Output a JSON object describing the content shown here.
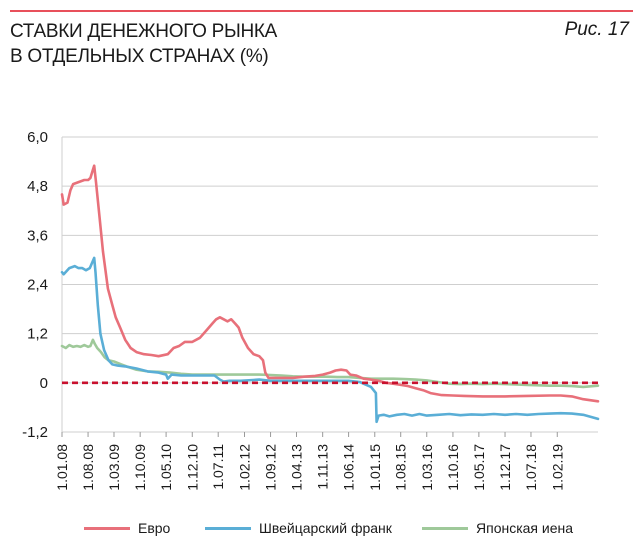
{
  "header": {
    "title_line1": "СТАВКИ ДЕНЕЖНОГО РЫНКА",
    "title_line2": "В ОТДЕЛЬНЫХ СТРАНАХ (%)",
    "figure_label": "Рис. 17",
    "accent_color": "#e8505b"
  },
  "chart_data": {
    "type": "line",
    "title": "СТАВКИ ДЕНЕЖНОГО РЫНКА В ОТДЕЛЬНЫХ СТРАНАХ (%)",
    "ylim": [
      -1.2,
      6.0
    ],
    "yticks": [
      6.0,
      4.8,
      3.6,
      2.4,
      1.2,
      0,
      -1.2
    ],
    "ytick_labels": [
      "6,0",
      "4,8",
      "3,6",
      "2,4",
      "1,2",
      "0",
      "-1,2"
    ],
    "xlim": [
      "2008-01-01",
      "2019-12-31"
    ],
    "xticks": [
      "2008-01-01",
      "2008-08-01",
      "2009-03-01",
      "2009-10-01",
      "2010-05-01",
      "2010-12-01",
      "2011-07-01",
      "2012-02-01",
      "2012-09-01",
      "2013-04-01",
      "2013-11-01",
      "2014-06-01",
      "2015-01-01",
      "2015-08-01",
      "2016-03-01",
      "2016-10-01",
      "2017-05-01",
      "2017-12-01",
      "2018-07-01",
      "2019-02-01"
    ],
    "xtick_labels": [
      "1.01.08",
      "1.08.08",
      "1.03.09",
      "1.10.09",
      "1.05.10",
      "1.12.10",
      "1.07.11",
      "1.02.12",
      "1.09.12",
      "1.04.13",
      "1.11.13",
      "1.06.14",
      "1.01.15",
      "1.08.15",
      "1.03.16",
      "1.10.16",
      "1.05.17",
      "1.12.17",
      "1.07.18",
      "1.02.19"
    ],
    "grid": "horizontal",
    "legend_position": "bottom",
    "zero_line_color": "#c8102e",
    "series": [
      {
        "name": "Евро",
        "color": "#e8707a",
        "points": [
          [
            "2008-01-01",
            4.6
          ],
          [
            "2008-01-15",
            4.35
          ],
          [
            "2008-02-15",
            4.4
          ],
          [
            "2008-03-10",
            4.7
          ],
          [
            "2008-04-01",
            4.85
          ],
          [
            "2008-05-15",
            4.9
          ],
          [
            "2008-07-01",
            4.95
          ],
          [
            "2008-08-01",
            4.95
          ],
          [
            "2008-08-20",
            5.0
          ],
          [
            "2008-09-10",
            5.2
          ],
          [
            "2008-09-20",
            5.3
          ],
          [
            "2008-10-05",
            4.9
          ],
          [
            "2008-11-01",
            4.1
          ],
          [
            "2008-12-01",
            3.2
          ],
          [
            "2009-01-10",
            2.3
          ],
          [
            "2009-02-15",
            1.9
          ],
          [
            "2009-03-15",
            1.6
          ],
          [
            "2009-04-20",
            1.35
          ],
          [
            "2009-06-01",
            1.05
          ],
          [
            "2009-07-15",
            0.85
          ],
          [
            "2009-09-01",
            0.75
          ],
          [
            "2009-11-01",
            0.7
          ],
          [
            "2010-01-01",
            0.68
          ],
          [
            "2010-03-01",
            0.65
          ],
          [
            "2010-05-15",
            0.7
          ],
          [
            "2010-07-01",
            0.85
          ],
          [
            "2010-08-15",
            0.9
          ],
          [
            "2010-10-01",
            1.0
          ],
          [
            "2010-12-01",
            1.0
          ],
          [
            "2011-02-01",
            1.1
          ],
          [
            "2011-04-01",
            1.3
          ],
          [
            "2011-05-15",
            1.45
          ],
          [
            "2011-06-15",
            1.55
          ],
          [
            "2011-07-15",
            1.6
          ],
          [
            "2011-08-15",
            1.55
          ],
          [
            "2011-09-15",
            1.5
          ],
          [
            "2011-10-15",
            1.55
          ],
          [
            "2011-11-15",
            1.45
          ],
          [
            "2011-12-15",
            1.35
          ],
          [
            "2012-01-15",
            1.1
          ],
          [
            "2012-03-01",
            0.85
          ],
          [
            "2012-04-15",
            0.7
          ],
          [
            "2012-06-01",
            0.65
          ],
          [
            "2012-07-01",
            0.55
          ],
          [
            "2012-07-20",
            0.25
          ],
          [
            "2012-08-15",
            0.12
          ],
          [
            "2012-10-01",
            0.12
          ],
          [
            "2012-12-01",
            0.12
          ],
          [
            "2013-03-01",
            0.12
          ],
          [
            "2013-06-01",
            0.15
          ],
          [
            "2013-09-01",
            0.17
          ],
          [
            "2013-11-01",
            0.2
          ],
          [
            "2014-01-01",
            0.25
          ],
          [
            "2014-02-15",
            0.3
          ],
          [
            "2014-04-01",
            0.32
          ],
          [
            "2014-05-15",
            0.3
          ],
          [
            "2014-06-15",
            0.2
          ],
          [
            "2014-08-01",
            0.18
          ],
          [
            "2014-10-01",
            0.1
          ],
          [
            "2014-12-01",
            0.08
          ],
          [
            "2015-02-01",
            0.05
          ],
          [
            "2015-04-01",
            0.0
          ],
          [
            "2015-06-01",
            -0.02
          ],
          [
            "2015-08-01",
            -0.05
          ],
          [
            "2015-10-01",
            -0.08
          ],
          [
            "2015-12-01",
            -0.13
          ],
          [
            "2016-02-01",
            -0.18
          ],
          [
            "2016-04-01",
            -0.25
          ],
          [
            "2016-07-01",
            -0.3
          ],
          [
            "2016-10-01",
            -0.31
          ],
          [
            "2017-01-01",
            -0.32
          ],
          [
            "2017-06-01",
            -0.33
          ],
          [
            "2017-12-01",
            -0.33
          ],
          [
            "2018-06-01",
            -0.32
          ],
          [
            "2018-12-01",
            -0.31
          ],
          [
            "2019-03-01",
            -0.31
          ],
          [
            "2019-06-01",
            -0.33
          ],
          [
            "2019-09-01",
            -0.4
          ],
          [
            "2019-12-31",
            -0.45
          ]
        ]
      },
      {
        "name": "Швейцарский франк",
        "color": "#5aaed6",
        "points": [
          [
            "2008-01-01",
            2.7
          ],
          [
            "2008-01-15",
            2.65
          ],
          [
            "2008-03-01",
            2.8
          ],
          [
            "2008-04-15",
            2.85
          ],
          [
            "2008-05-15",
            2.8
          ],
          [
            "2008-06-15",
            2.8
          ],
          [
            "2008-07-15",
            2.75
          ],
          [
            "2008-08-15",
            2.8
          ],
          [
            "2008-09-20",
            3.05
          ],
          [
            "2008-10-01",
            2.7
          ],
          [
            "2008-10-20",
            1.9
          ],
          [
            "2008-11-10",
            1.2
          ],
          [
            "2008-12-10",
            0.8
          ],
          [
            "2009-01-15",
            0.55
          ],
          [
            "2009-02-15",
            0.45
          ],
          [
            "2009-04-01",
            0.42
          ],
          [
            "2009-06-01",
            0.4
          ],
          [
            "2009-09-01",
            0.35
          ],
          [
            "2009-12-01",
            0.28
          ],
          [
            "2010-03-01",
            0.25
          ],
          [
            "2010-05-01",
            0.2
          ],
          [
            "2010-05-15",
            0.1
          ],
          [
            "2010-06-15",
            0.2
          ],
          [
            "2010-09-01",
            0.18
          ],
          [
            "2010-12-01",
            0.18
          ],
          [
            "2011-03-01",
            0.18
          ],
          [
            "2011-06-01",
            0.18
          ],
          [
            "2011-07-15",
            0.08
          ],
          [
            "2011-08-15",
            0.03
          ],
          [
            "2011-10-01",
            0.05
          ],
          [
            "2012-01-01",
            0.05
          ],
          [
            "2012-06-01",
            0.08
          ],
          [
            "2012-09-01",
            0.05
          ],
          [
            "2013-01-01",
            0.05
          ],
          [
            "2013-06-01",
            0.05
          ],
          [
            "2014-01-01",
            0.05
          ],
          [
            "2014-06-01",
            0.05
          ],
          [
            "2014-09-01",
            0.02
          ],
          [
            "2014-12-01",
            -0.1
          ],
          [
            "2015-01-10",
            -0.25
          ],
          [
            "2015-01-16",
            -0.95
          ],
          [
            "2015-02-01",
            -0.8
          ],
          [
            "2015-03-15",
            -0.78
          ],
          [
            "2015-05-01",
            -0.82
          ],
          [
            "2015-07-01",
            -0.78
          ],
          [
            "2015-09-01",
            -0.76
          ],
          [
            "2015-11-01",
            -0.8
          ],
          [
            "2016-01-01",
            -0.76
          ],
          [
            "2016-03-01",
            -0.8
          ],
          [
            "2016-06-01",
            -0.78
          ],
          [
            "2016-09-01",
            -0.76
          ],
          [
            "2016-12-01",
            -0.79
          ],
          [
            "2017-03-01",
            -0.77
          ],
          [
            "2017-06-01",
            -0.78
          ],
          [
            "2017-09-01",
            -0.76
          ],
          [
            "2017-12-01",
            -0.78
          ],
          [
            "2018-03-01",
            -0.76
          ],
          [
            "2018-06-01",
            -0.78
          ],
          [
            "2018-09-01",
            -0.76
          ],
          [
            "2018-12-01",
            -0.75
          ],
          [
            "2019-03-01",
            -0.74
          ],
          [
            "2019-06-01",
            -0.75
          ],
          [
            "2019-09-01",
            -0.78
          ],
          [
            "2019-12-31",
            -0.88
          ]
        ]
      },
      {
        "name": "Японская иена",
        "color": "#9fc99a",
        "points": [
          [
            "2008-01-01",
            0.9
          ],
          [
            "2008-02-01",
            0.85
          ],
          [
            "2008-03-01",
            0.92
          ],
          [
            "2008-04-01",
            0.88
          ],
          [
            "2008-05-01",
            0.9
          ],
          [
            "2008-06-01",
            0.88
          ],
          [
            "2008-07-01",
            0.92
          ],
          [
            "2008-08-01",
            0.88
          ],
          [
            "2008-08-20",
            0.9
          ],
          [
            "2008-09-10",
            1.05
          ],
          [
            "2008-09-25",
            0.95
          ],
          [
            "2008-10-15",
            0.85
          ],
          [
            "2008-11-15",
            0.75
          ],
          [
            "2008-12-15",
            0.62
          ],
          [
            "2009-01-15",
            0.55
          ],
          [
            "2009-03-01",
            0.52
          ],
          [
            "2009-05-01",
            0.45
          ],
          [
            "2009-07-01",
            0.38
          ],
          [
            "2009-09-01",
            0.32
          ],
          [
            "2009-12-01",
            0.28
          ],
          [
            "2010-03-01",
            0.27
          ],
          [
            "2010-06-01",
            0.25
          ],
          [
            "2010-09-01",
            0.22
          ],
          [
            "2010-12-01",
            0.2
          ],
          [
            "2011-03-01",
            0.2
          ],
          [
            "2011-06-01",
            0.2
          ],
          [
            "2011-09-01",
            0.2
          ],
          [
            "2011-12-01",
            0.2
          ],
          [
            "2012-03-01",
            0.2
          ],
          [
            "2012-06-01",
            0.2
          ],
          [
            "2012-09-01",
            0.19
          ],
          [
            "2012-12-01",
            0.18
          ],
          [
            "2013-03-01",
            0.16
          ],
          [
            "2013-06-01",
            0.15
          ],
          [
            "2013-09-01",
            0.15
          ],
          [
            "2013-12-01",
            0.15
          ],
          [
            "2014-03-01",
            0.14
          ],
          [
            "2014-06-01",
            0.14
          ],
          [
            "2014-09-01",
            0.12
          ],
          [
            "2014-12-01",
            0.1
          ],
          [
            "2015-03-01",
            0.1
          ],
          [
            "2015-06-01",
            0.1
          ],
          [
            "2015-09-01",
            0.09
          ],
          [
            "2015-12-01",
            0.08
          ],
          [
            "2016-03-01",
            0.06
          ],
          [
            "2016-06-01",
            0.02
          ],
          [
            "2016-09-01",
            -0.02
          ],
          [
            "2016-12-01",
            -0.03
          ],
          [
            "2017-03-01",
            -0.02
          ],
          [
            "2017-06-01",
            -0.03
          ],
          [
            "2017-09-01",
            -0.02
          ],
          [
            "2017-12-01",
            -0.03
          ],
          [
            "2018-03-01",
            -0.04
          ],
          [
            "2018-06-01",
            -0.05
          ],
          [
            "2018-09-01",
            -0.06
          ],
          [
            "2018-12-01",
            -0.07
          ],
          [
            "2019-03-01",
            -0.07
          ],
          [
            "2019-06-01",
            -0.08
          ],
          [
            "2019-09-01",
            -0.1
          ],
          [
            "2019-12-31",
            -0.07
          ]
        ]
      }
    ]
  }
}
